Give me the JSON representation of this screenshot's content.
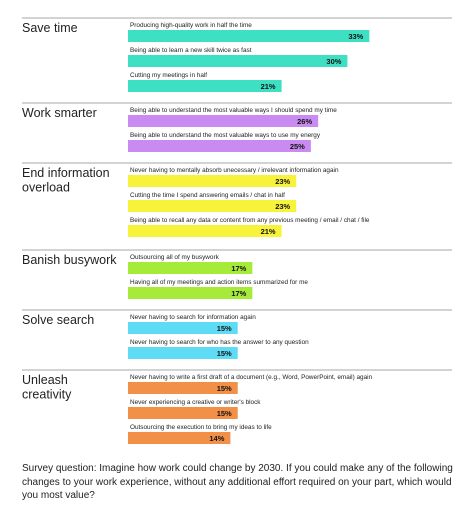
{
  "chart_data": {
    "type": "bar",
    "orientation": "horizontal",
    "value_suffix": "%",
    "xlim": [
      0,
      35
    ],
    "grid": false,
    "legend": "none",
    "groups": [
      {
        "name": "Save time",
        "color": "#3ee0c4",
        "items": [
          {
            "label": "Producing high-quality work in half the time",
            "value": 33
          },
          {
            "label": "Being able to learn a new skill twice as fast",
            "value": 30
          },
          {
            "label": "Cutting my meetings in half",
            "value": 21
          }
        ]
      },
      {
        "name": "Work smarter",
        "color": "#c98bf2",
        "items": [
          {
            "label": "Being able to understand the most valuable ways I should spend my time",
            "value": 26
          },
          {
            "label": "Being able to understand the most valuable ways to use my energy",
            "value": 25
          }
        ]
      },
      {
        "name": "End information overload",
        "color": "#f7f23a",
        "items": [
          {
            "label": "Never having to mentally absorb unecessary / irrelevant information again",
            "value": 23
          },
          {
            "label": "Cutting the time I spend answering emails / chat in half",
            "value": 23
          },
          {
            "label": "Being able to recall any data or content from any previous meeting / email / chat / file",
            "value": 21
          }
        ]
      },
      {
        "name": "Banish busywork",
        "color": "#a6ea3a",
        "items": [
          {
            "label": "Outsourcing all of my busywork",
            "value": 17
          },
          {
            "label": "Having all of my meetings and action items summarized for me",
            "value": 17
          }
        ]
      },
      {
        "name": "Solve search",
        "color": "#5fdcf5",
        "items": [
          {
            "label": "Never having to search for information again",
            "value": 15
          },
          {
            "label": "Never having to search for who has the answer to any question",
            "value": 15
          }
        ]
      },
      {
        "name": "Unleash creativity",
        "color": "#f29048",
        "items": [
          {
            "label": "Never having to write a first draft of a document (e.g., Word, PowerPoint, email) again",
            "value": 15
          },
          {
            "label": "Never experiencing a creative or writer's block",
            "value": 15
          },
          {
            "label": "Outsourcing the execution to bring my ideas to life",
            "value": 14
          }
        ]
      }
    ]
  },
  "footnote": "Survey question: Imagine how work could change by 2030. If you could make any of the following changes to your work experience, without any additional effort required on your part, which would you most value?"
}
